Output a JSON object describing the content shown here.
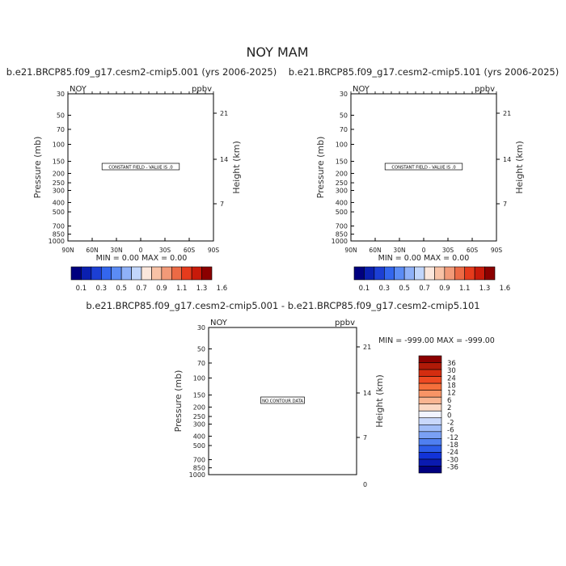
{
  "main_title": "NOY MAM",
  "chart_data": [
    {
      "type": "heatmap",
      "title": "b.e21.BRCP85.f09_g17.cesm2-cmip5.001 (yrs 2006-2025)",
      "variable": "NOY",
      "units": "ppbv",
      "ylabel": "Pressure (mb)",
      "ylabel_right": "Height (km)",
      "pressure_ticks": [
        "30",
        "50",
        "70",
        "100",
        "150",
        "200",
        "250",
        "300",
        "400",
        "500",
        "700",
        "850",
        "1000"
      ],
      "height_ticks": [
        "21",
        "14",
        "7"
      ],
      "lat_ticks": [
        "90N",
        "60N",
        "30N",
        "0",
        "30S",
        "60S",
        "90S"
      ],
      "annotation": "CONSTANT FIELD - VALUE IS .0",
      "stats": "MIN =     0.00   MAX =     0.00",
      "min": 0.0,
      "max": 0.0,
      "colorbar_labels": [
        "0.1",
        "0.3",
        "0.5",
        "0.7",
        "0.9",
        "1.1",
        "1.3",
        "1.6"
      ],
      "colorbar_colors": [
        "#00007f",
        "#0a1fb0",
        "#1c3fd4",
        "#3366ee",
        "#5b8cf5",
        "#8fb1f8",
        "#c2d6fb",
        "#fbe7dc",
        "#f8c2a6",
        "#f29a78",
        "#ec6a45",
        "#e63b1c",
        "#c81a0a",
        "#8b0000"
      ]
    },
    {
      "type": "heatmap",
      "title": "b.e21.BRCP85.f09_g17.cesm2-cmip5.101 (yrs 2006-2025)",
      "variable": "NOY",
      "units": "ppbv",
      "ylabel": "Pressure (mb)",
      "ylabel_right": "Height (km)",
      "pressure_ticks": [
        "30",
        "50",
        "70",
        "100",
        "150",
        "200",
        "250",
        "300",
        "400",
        "500",
        "700",
        "850",
        "1000"
      ],
      "height_ticks": [
        "21",
        "14",
        "7"
      ],
      "lat_ticks": [
        "90N",
        "60N",
        "30N",
        "0",
        "30S",
        "60S",
        "90S"
      ],
      "annotation": "CONSTANT FIELD - VALUE IS .0",
      "stats": "MIN =     0.00   MAX =     0.00",
      "min": 0.0,
      "max": 0.0,
      "colorbar_labels": [
        "0.1",
        "0.3",
        "0.5",
        "0.7",
        "0.9",
        "1.1",
        "1.3",
        "1.6"
      ],
      "colorbar_colors": [
        "#00007f",
        "#0a1fb0",
        "#1c3fd4",
        "#3366ee",
        "#5b8cf5",
        "#8fb1f8",
        "#c2d6fb",
        "#fbe7dc",
        "#f8c2a6",
        "#f29a78",
        "#ec6a45",
        "#e63b1c",
        "#c81a0a",
        "#8b0000"
      ]
    },
    {
      "type": "heatmap",
      "title": "b.e21.BRCP85.f09_g17.cesm2-cmip5.001  -  b.e21.BRCP85.f09_g17.cesm2-cmip5.101",
      "variable": "NOY",
      "units": "ppbv",
      "ylabel": "Pressure (mb)",
      "ylabel_right": "Height (km)",
      "pressure_ticks": [
        "30",
        "50",
        "70",
        "100",
        "150",
        "200",
        "250",
        "300",
        "400",
        "500",
        "700",
        "850",
        "1000"
      ],
      "height_ticks": [
        "21",
        "14",
        "7",
        "0"
      ],
      "annotation": "NO CONTOUR DATA",
      "stats": "MIN = -999.00   MAX = -999.00",
      "min": -999.0,
      "max": -999.0,
      "colorbar_labels": [
        "36",
        "30",
        "24",
        "18",
        "12",
        "6",
        "2",
        "0",
        "-2",
        "-6",
        "-12",
        "-18",
        "-24",
        "-30",
        "-36"
      ],
      "colorbar_colors": [
        "#8b0000",
        "#b01a08",
        "#d42d10",
        "#ee4a22",
        "#f5703c",
        "#f89466",
        "#f9b592",
        "#fbd8c4",
        "#f2f4ff",
        "#c9d8fb",
        "#a1bdf8",
        "#7aa0f4",
        "#4f7ff0",
        "#2c5ce8",
        "#1233d8",
        "#0a1ab0",
        "#00007f"
      ]
    }
  ]
}
